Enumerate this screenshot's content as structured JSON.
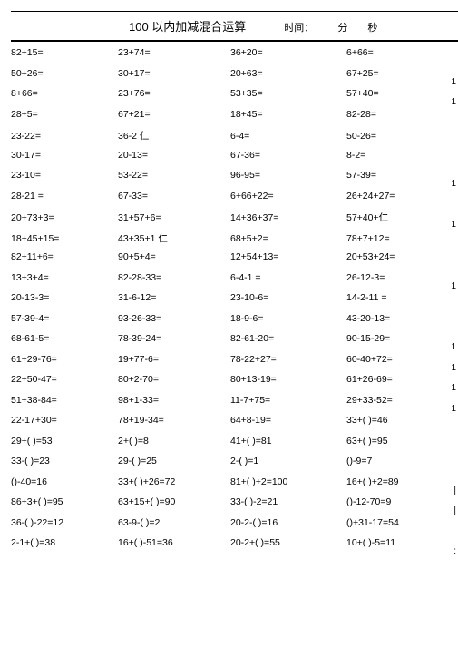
{
  "header": {
    "title": "100 以内加减混合运算",
    "time_label": "时间：",
    "fen": "分",
    "miao": "秒"
  },
  "rows": [
    {
      "c1": "82+15=",
      "c2": "23+74=",
      "c3": "36+20=",
      "c4": "6+66="
    },
    {
      "c1": "50+26=",
      "c2": "30+17=",
      "c3": "20+63=",
      "c4": "67+25=",
      "edge": "1"
    },
    {
      "c1": "8+66=",
      "c2": "23+76=",
      "c3": "53+35=",
      "c4": "57+40=",
      "edge": "1"
    },
    {
      "c1": "28+5=",
      "c2": "67+21=",
      "c3": "18+45=",
      "c4": "82-28="
    },
    {
      "c1": "23-22=",
      "c2": "36-2 仁",
      "c3": "6-4=",
      "c4": "50-26="
    },
    {
      "c1": "30-17=",
      "c2": "20-13=",
      "c3": "67-36=",
      "c4": "8-2="
    },
    {
      "c1": "23-10=",
      "c2": "53-22=",
      "c3": "96-95=",
      "c4": "57-39=",
      "edge": "1"
    },
    {
      "c1": "28-21 =",
      "c2": "67-33=",
      "c3": "6+66+22=",
      "c4": "26+24+27="
    },
    {
      "c1": "20+73+3=",
      "c2": "31+57+6=",
      "c3": "14+36+37=",
      "c4": "57+40+仁",
      "edge": "1"
    },
    {
      "c1": "18+45+15=",
      "c2": "43+35+1 仁",
      "c3": "68+5+2=",
      "c4": "78+7+12="
    },
    {
      "c1": "82+11+6=",
      "c2": "90+5+4=",
      "c3": "12+54+13=",
      "c4": "20+53+24="
    },
    {
      "c1": "13+3+4=",
      "c2": "82-28-33=",
      "c3": "6-4-1 =",
      "c4": "26-12-3=",
      "edge": "1"
    },
    {
      "c1": "20-13-3=",
      "c2": "31-6-12=",
      "c3": "23-10-6=",
      "c4": "14-2-11 ="
    },
    {
      "c1": "57-39-4=",
      "c2": "93-26-33=",
      "c3": "18-9-6=",
      "c4": "43-20-13="
    },
    {
      "c1": "68-61-5=",
      "c2": "78-39-24=",
      "c3": "82-61-20=",
      "c4": "90-15-29=",
      "edge": "1"
    },
    {
      "c1": "61+29-76=",
      "c2": "19+77-6=",
      "c3": "78-22+27=",
      "c4": "60-40+72=",
      "edge": "1"
    },
    {
      "c1": "22+50-47=",
      "c2": "80+2-70=",
      "c3": "80+13-19=",
      "c4": "61+26-69=",
      "edge": "1"
    },
    {
      "c1": "51+38-84=",
      "c2": "98+1-33=",
      "c3": "11-7+75=",
      "c4": "29+33-52=",
      "edge": "1"
    },
    {
      "c1": "22-17+30=",
      "c2": "78+19-34=",
      "c3": "64+8-19=",
      "c4": "33+(   )=46"
    },
    {
      "c1": "29+(   )=53",
      "c2": "2+( )=8",
      "c3": "41+(   )=81",
      "c4": "63+(    )=95"
    },
    {
      "c1": "33-(   )=23",
      "c2": "29-(   )=25",
      "c3": "2-( )=1",
      "c4": "()-9=7"
    },
    {
      "c1": "()-40=16",
      "c2": "33+(   )+26=72",
      "c3": "81+( )+2=100",
      "c4": "16+(   )+2=89",
      "edge": "|"
    },
    {
      "c1": "86+3+(   )=95",
      "c2": "63+15+(   )=90",
      "c3": "33-(   )-2=21",
      "c4": "()-12-70=9",
      "edge": "|"
    },
    {
      "c1": "36-(   )-22=12",
      "c2": "63-9-(   )=2",
      "c3": "20-2-( )=16",
      "c4": "()+31-17=54"
    },
    {
      "c1": "2-1+(   )=38",
      "c2": "16+(   )-51=36",
      "c3": "20-2+(    )=55",
      "c4": "10+(   )-5=11",
      "edge": ":"
    }
  ]
}
